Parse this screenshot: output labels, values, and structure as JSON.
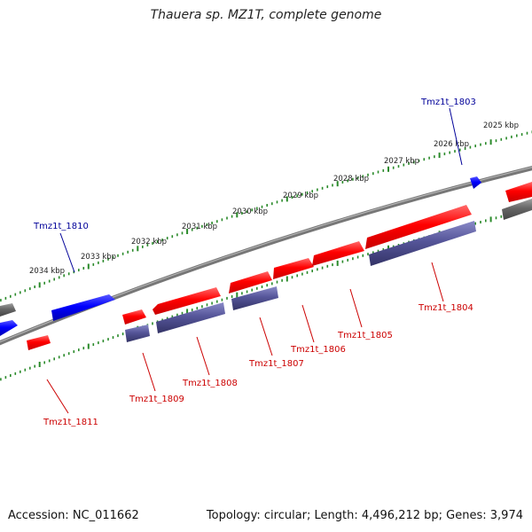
{
  "title": "Thauera sp. MZ1T, complete genome",
  "footer": {
    "accession": "Accession: NC_011662",
    "summary": "Topology: circular; Length: 4,496,212 bp; Genes: 3,974"
  },
  "colors": {
    "plus_strand": "#ff0000",
    "minus_strand": "#0000ff",
    "rna_cds": "#555599",
    "backbone": "#777777",
    "other_feature": "#666666",
    "tick": "#2a8a2a",
    "label_plus": "#cc0000",
    "label_minus": "#000099"
  },
  "scale_labels": [
    "2025 kbp",
    "2026 kbp",
    "2027 kbp",
    "2028 kbp",
    "2029 kbp",
    "2030 kbp",
    "2031 kbp",
    "2032 kbp",
    "2033 kbp",
    "2034 kbp"
  ],
  "gene_labels": [
    {
      "name": "Tmz1t_1803",
      "strand": "minus"
    },
    {
      "name": "Tmz1t_1804",
      "strand": "plus"
    },
    {
      "name": "Tmz1t_1805",
      "strand": "plus"
    },
    {
      "name": "Tmz1t_1806",
      "strand": "plus"
    },
    {
      "name": "Tmz1t_1807",
      "strand": "plus"
    },
    {
      "name": "Tmz1t_1808",
      "strand": "plus"
    },
    {
      "name": "Tmz1t_1809",
      "strand": "plus"
    },
    {
      "name": "Tmz1t_1810",
      "strand": "minus"
    },
    {
      "name": "Tmz1t_1811",
      "strand": "plus"
    }
  ]
}
